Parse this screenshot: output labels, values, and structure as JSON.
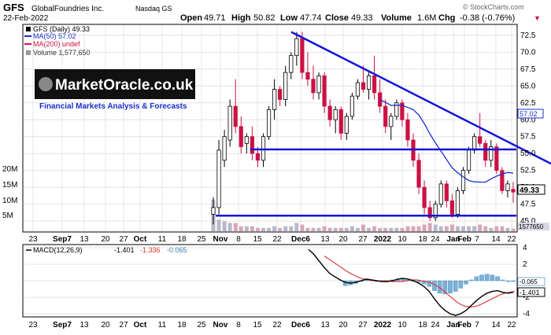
{
  "header": {
    "symbol": "GFS",
    "company": "GlobalFoundries Inc.",
    "exchange": "Nasdaq GS",
    "date": "22-Feb-2022",
    "open_label": "Open",
    "open": "49.71",
    "high_label": "High",
    "high": "50.82",
    "low_label": "Low",
    "low": "47.74",
    "close_label": "Close",
    "close": "49.33",
    "volume_label": "Volume",
    "volume": "1.6M",
    "chg_label": "Chg",
    "chg": "-0.38 (-0.76%)",
    "chg_arrow": "▼",
    "copyright": "© StockCharts.com"
  },
  "legend": {
    "series": "GFS (Daily) 49.33",
    "ma50": "MA(50) 57.02",
    "ma200": "MA(200) undef",
    "volume": "Volume 1,577,650"
  },
  "watermark": {
    "brand": "MarketOracle.co.uk",
    "tagline": "Financial Markets Analysis & Forecasts"
  },
  "x_axis_labels": [
    "23",
    "Sep7",
    "13",
    "20",
    "27",
    "Oct",
    "11",
    "18",
    "25",
    "Nov",
    "8",
    "15",
    "22",
    "Dec6",
    "13",
    "20",
    "27",
    "2022",
    "10",
    "18",
    "24",
    "Jan",
    "Feb",
    "7",
    "14",
    "22"
  ],
  "price_axis": {
    "ticks": [
      "72.5",
      "70.0",
      "67.5",
      "65.0",
      "62.5",
      "60.0",
      "57.5",
      "55.0",
      "52.5",
      "50.0",
      "47.5",
      "45.0"
    ],
    "badge_ma50": "57.02",
    "badge_close": "49.33",
    "badge_volume": "1577650"
  },
  "volume_axis": {
    "ticks": [
      "20M",
      "15M",
      "10M",
      "5M"
    ]
  },
  "macd": {
    "label": "MACD(12,26,9)",
    "macd": "-1.401",
    "signal": "-1.336",
    "hist": "-0.065",
    "ticks": [
      "4",
      "2",
      "0",
      "-2",
      "-4"
    ],
    "badge_hist": "-0.065",
    "badge_macd": "-1.401"
  },
  "colors": {
    "up": "#000000",
    "down": "#cc1144",
    "ma50": "#1a2fcc",
    "ma200": "#cc1144",
    "volume": "#b8b8cc",
    "trendline": "#1414d8",
    "hist": "#7ab0d8",
    "signal": "#e03030"
  },
  "chart_data": {
    "type": "candlestick",
    "ylim": [
      43.5,
      74
    ],
    "trendlines": [
      {
        "kind": "downtrend",
        "points": [
          [
            "Dec2",
            73
          ],
          [
            "Feb24",
            53.5
          ]
        ]
      },
      {
        "kind": "horizontal",
        "value": 55.6
      },
      {
        "kind": "horizontal",
        "value": 45.8
      }
    ],
    "series_candles": [
      {
        "o": 46,
        "h": 48.5,
        "l": 44.5,
        "c": 47,
        "v": 19
      },
      {
        "o": 47,
        "h": 57,
        "l": 46,
        "c": 55.5,
        "v": 7
      },
      {
        "o": 54,
        "h": 58.5,
        "l": 53,
        "c": 57.5,
        "v": 6
      },
      {
        "o": 57,
        "h": 63,
        "l": 56,
        "c": 62,
        "v": 5
      },
      {
        "o": 62,
        "h": 66,
        "l": 58,
        "c": 59,
        "v": 5
      },
      {
        "o": 59,
        "h": 60.5,
        "l": 55,
        "c": 56,
        "v": 3
      },
      {
        "o": 56.5,
        "h": 58,
        "l": 55,
        "c": 57.5,
        "v": 3
      },
      {
        "o": 57.5,
        "h": 59,
        "l": 54,
        "c": 55,
        "v": 3
      },
      {
        "o": 55,
        "h": 56,
        "l": 53,
        "c": 54,
        "v": 2
      },
      {
        "o": 54,
        "h": 58,
        "l": 53,
        "c": 57.5,
        "v": 2
      },
      {
        "o": 57.5,
        "h": 62,
        "l": 57,
        "c": 61.5,
        "v": 2
      },
      {
        "o": 61.5,
        "h": 66,
        "l": 60,
        "c": 64.5,
        "v": 3
      },
      {
        "o": 64.5,
        "h": 65,
        "l": 62,
        "c": 63,
        "v": 2
      },
      {
        "o": 63,
        "h": 68,
        "l": 62,
        "c": 67,
        "v": 3
      },
      {
        "o": 67,
        "h": 70,
        "l": 66,
        "c": 69.5,
        "v": 3
      },
      {
        "o": 69.5,
        "h": 73,
        "l": 68,
        "c": 72,
        "v": 5
      },
      {
        "o": 72,
        "h": 73,
        "l": 66,
        "c": 67,
        "v": 4
      },
      {
        "o": 67,
        "h": 70,
        "l": 65,
        "c": 66,
        "v": 2
      },
      {
        "o": 66,
        "h": 68,
        "l": 63,
        "c": 64,
        "v": 2
      },
      {
        "o": 64,
        "h": 67,
        "l": 63,
        "c": 66.5,
        "v": 2
      },
      {
        "o": 66.5,
        "h": 67,
        "l": 61,
        "c": 62,
        "v": 3
      },
      {
        "o": 62,
        "h": 63,
        "l": 59,
        "c": 60,
        "v": 2
      },
      {
        "o": 60,
        "h": 62,
        "l": 58,
        "c": 61.5,
        "v": 2
      },
      {
        "o": 61.5,
        "h": 62,
        "l": 57,
        "c": 58,
        "v": 2
      },
      {
        "o": 58,
        "h": 61,
        "l": 57,
        "c": 60.5,
        "v": 2
      },
      {
        "o": 60.5,
        "h": 64,
        "l": 60,
        "c": 63.5,
        "v": 3
      },
      {
        "o": 63.5,
        "h": 66,
        "l": 63,
        "c": 65.5,
        "v": 2
      },
      {
        "o": 65.5,
        "h": 68,
        "l": 64,
        "c": 64.5,
        "v": 4
      },
      {
        "o": 64.5,
        "h": 67,
        "l": 63,
        "c": 66.5,
        "v": 2
      },
      {
        "o": 66.5,
        "h": 69.5,
        "l": 63,
        "c": 64,
        "v": 3
      },
      {
        "o": 64,
        "h": 66,
        "l": 61,
        "c": 62,
        "v": 2
      },
      {
        "o": 62,
        "h": 63,
        "l": 58,
        "c": 59,
        "v": 2
      },
      {
        "o": 59,
        "h": 61,
        "l": 57,
        "c": 60.5,
        "v": 2
      },
      {
        "o": 60.5,
        "h": 63,
        "l": 60,
        "c": 62.5,
        "v": 2
      },
      {
        "o": 62.5,
        "h": 63,
        "l": 59,
        "c": 60,
        "v": 2
      },
      {
        "o": 60,
        "h": 61,
        "l": 56,
        "c": 57,
        "v": 3
      },
      {
        "o": 57,
        "h": 58,
        "l": 53,
        "c": 54,
        "v": 3
      },
      {
        "o": 54,
        "h": 55,
        "l": 49,
        "c": 50,
        "v": 3
      },
      {
        "o": 50,
        "h": 51,
        "l": 46,
        "c": 47,
        "v": 4
      },
      {
        "o": 47,
        "h": 48,
        "l": 45,
        "c": 45.5,
        "v": 5
      },
      {
        "o": 45.5,
        "h": 48,
        "l": 45,
        "c": 47.5,
        "v": 4
      },
      {
        "o": 47.5,
        "h": 51,
        "l": 47,
        "c": 50.5,
        "v": 3
      },
      {
        "o": 50.5,
        "h": 51,
        "l": 47,
        "c": 48,
        "v": 3
      },
      {
        "o": 48,
        "h": 49,
        "l": 45.5,
        "c": 46,
        "v": 4
      },
      {
        "o": 46,
        "h": 50,
        "l": 45.5,
        "c": 49.5,
        "v": 3
      },
      {
        "o": 49.5,
        "h": 53,
        "l": 49,
        "c": 52.5,
        "v": 3
      },
      {
        "o": 52.5,
        "h": 56,
        "l": 52,
        "c": 55.5,
        "v": 3
      },
      {
        "o": 55.5,
        "h": 58,
        "l": 55,
        "c": 57.5,
        "v": 3
      },
      {
        "o": 57.5,
        "h": 61,
        "l": 56,
        "c": 56.5,
        "v": 4
      },
      {
        "o": 56.5,
        "h": 57,
        "l": 53,
        "c": 54,
        "v": 3
      },
      {
        "o": 54,
        "h": 57,
        "l": 53,
        "c": 56,
        "v": 2
      },
      {
        "o": 56,
        "h": 56.5,
        "l": 52,
        "c": 52.5,
        "v": 3
      },
      {
        "o": 52.5,
        "h": 53,
        "l": 49,
        "c": 49.5,
        "v": 3
      },
      {
        "o": 49.5,
        "h": 51,
        "l": 48.5,
        "c": 50.5,
        "v": 2
      },
      {
        "o": 49.7,
        "h": 50.8,
        "l": 47.7,
        "c": 49.3,
        "v": 1.6
      }
    ]
  }
}
